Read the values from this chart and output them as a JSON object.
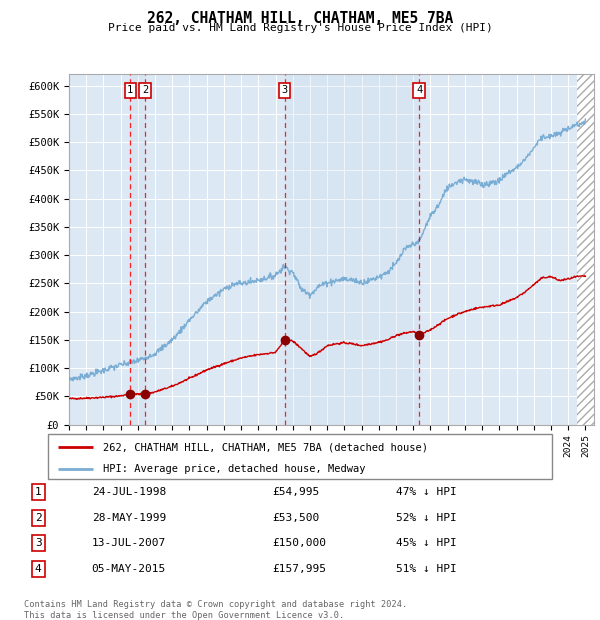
{
  "title": "262, CHATHAM HILL, CHATHAM, ME5 7BA",
  "subtitle": "Price paid vs. HM Land Registry's House Price Index (HPI)",
  "footer": "Contains HM Land Registry data © Crown copyright and database right 2024.\nThis data is licensed under the Open Government Licence v3.0.",
  "legend_red": "262, CHATHAM HILL, CHATHAM, ME5 7BA (detached house)",
  "legend_blue": "HPI: Average price, detached house, Medway",
  "transactions": [
    {
      "num": 1,
      "date": "24-JUL-1998",
      "price": 54995,
      "pct": "47% ↓ HPI",
      "year": 1998.56
    },
    {
      "num": 2,
      "date": "28-MAY-1999",
      "price": 53500,
      "pct": "52% ↓ HPI",
      "year": 1999.41
    },
    {
      "num": 3,
      "date": "13-JUL-2007",
      "price": 150000,
      "pct": "45% ↓ HPI",
      "year": 2007.53
    },
    {
      "num": 4,
      "date": "05-MAY-2015",
      "price": 157995,
      "pct": "51% ↓ HPI",
      "year": 2015.34
    }
  ],
  "ylim": [
    0,
    620000
  ],
  "xlim_start": 1995.0,
  "xlim_end": 2025.5,
  "yticks": [
    0,
    50000,
    100000,
    150000,
    200000,
    250000,
    300000,
    350000,
    400000,
    450000,
    500000,
    550000,
    600000
  ],
  "ytick_labels": [
    "£0",
    "£50K",
    "£100K",
    "£150K",
    "£200K",
    "£250K",
    "£300K",
    "£350K",
    "£400K",
    "£450K",
    "£500K",
    "£550K",
    "£600K"
  ],
  "bg_color": "#dde8f5",
  "hatch_region_start": 2024.5,
  "red_line_color": "#cc0000",
  "blue_line_color": "#7aadd4",
  "shaded_regions": [
    {
      "start": 1998.56,
      "end": 1999.41
    },
    {
      "start": 2007.53,
      "end": 2015.34
    }
  ],
  "hpi_keypoints": [
    [
      1995.0,
      80000
    ],
    [
      1996.0,
      87000
    ],
    [
      1997.0,
      96000
    ],
    [
      1998.0,
      106000
    ],
    [
      1999.0,
      113000
    ],
    [
      2000.0,
      126000
    ],
    [
      2001.0,
      150000
    ],
    [
      2002.0,
      185000
    ],
    [
      2003.0,
      218000
    ],
    [
      2004.0,
      240000
    ],
    [
      2004.5,
      248000
    ],
    [
      2005.0,
      250000
    ],
    [
      2005.5,
      252000
    ],
    [
      2006.0,
      256000
    ],
    [
      2006.5,
      260000
    ],
    [
      2007.0,
      265000
    ],
    [
      2007.5,
      280000
    ],
    [
      2008.0,
      270000
    ],
    [
      2008.5,
      240000
    ],
    [
      2009.0,
      230000
    ],
    [
      2009.5,
      245000
    ],
    [
      2010.0,
      252000
    ],
    [
      2010.5,
      255000
    ],
    [
      2011.0,
      258000
    ],
    [
      2011.5,
      256000
    ],
    [
      2012.0,
      252000
    ],
    [
      2012.5,
      256000
    ],
    [
      2013.0,
      262000
    ],
    [
      2013.5,
      270000
    ],
    [
      2014.0,
      285000
    ],
    [
      2014.5,
      310000
    ],
    [
      2015.0,
      320000
    ],
    [
      2015.34,
      323000
    ],
    [
      2016.0,
      370000
    ],
    [
      2016.5,
      390000
    ],
    [
      2017.0,
      420000
    ],
    [
      2017.5,
      430000
    ],
    [
      2018.0,
      435000
    ],
    [
      2018.5,
      430000
    ],
    [
      2019.0,
      425000
    ],
    [
      2019.5,
      428000
    ],
    [
      2020.0,
      432000
    ],
    [
      2020.5,
      445000
    ],
    [
      2021.0,
      455000
    ],
    [
      2021.5,
      470000
    ],
    [
      2022.0,
      490000
    ],
    [
      2022.5,
      510000
    ],
    [
      2023.0,
      510000
    ],
    [
      2023.5,
      515000
    ],
    [
      2024.0,
      525000
    ],
    [
      2024.5,
      530000
    ],
    [
      2025.0,
      535000
    ]
  ],
  "red_keypoints": [
    [
      1995.0,
      46000
    ],
    [
      1996.0,
      47000
    ],
    [
      1997.0,
      48500
    ],
    [
      1998.0,
      51000
    ],
    [
      1998.56,
      54995
    ],
    [
      1999.0,
      54000
    ],
    [
      1999.41,
      53500
    ],
    [
      2000.0,
      58000
    ],
    [
      2001.0,
      68000
    ],
    [
      2002.0,
      82000
    ],
    [
      2003.0,
      97000
    ],
    [
      2004.0,
      108000
    ],
    [
      2005.0,
      118000
    ],
    [
      2006.0,
      124000
    ],
    [
      2007.0,
      128000
    ],
    [
      2007.53,
      150000
    ],
    [
      2008.0,
      148000
    ],
    [
      2008.5,
      135000
    ],
    [
      2009.0,
      120000
    ],
    [
      2009.5,
      128000
    ],
    [
      2010.0,
      140000
    ],
    [
      2010.5,
      143000
    ],
    [
      2011.0,
      145000
    ],
    [
      2011.5,
      143000
    ],
    [
      2012.0,
      140000
    ],
    [
      2012.5,
      143000
    ],
    [
      2013.0,
      146000
    ],
    [
      2013.5,
      150000
    ],
    [
      2014.0,
      158000
    ],
    [
      2014.5,
      162000
    ],
    [
      2015.0,
      165000
    ],
    [
      2015.34,
      157995
    ],
    [
      2016.0,
      168000
    ],
    [
      2016.5,
      178000
    ],
    [
      2017.0,
      188000
    ],
    [
      2017.5,
      195000
    ],
    [
      2018.0,
      200000
    ],
    [
      2018.5,
      205000
    ],
    [
      2019.0,
      208000
    ],
    [
      2019.5,
      210000
    ],
    [
      2020.0,
      212000
    ],
    [
      2020.5,
      218000
    ],
    [
      2021.0,
      225000
    ],
    [
      2021.5,
      235000
    ],
    [
      2022.0,
      248000
    ],
    [
      2022.5,
      260000
    ],
    [
      2023.0,
      262000
    ],
    [
      2023.5,
      255000
    ],
    [
      2024.0,
      258000
    ],
    [
      2024.5,
      262000
    ],
    [
      2025.0,
      263000
    ]
  ]
}
